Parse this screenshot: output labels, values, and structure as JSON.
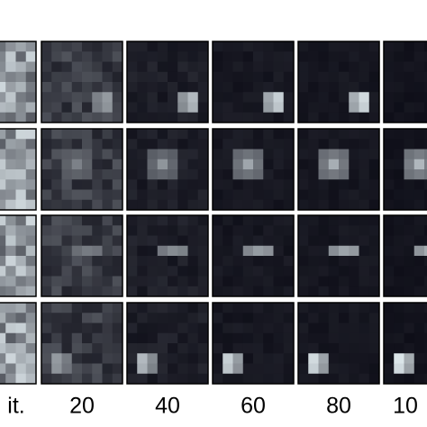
{
  "column_labels": [
    "it.",
    "20",
    "40",
    "60",
    "80",
    "10"
  ]
}
